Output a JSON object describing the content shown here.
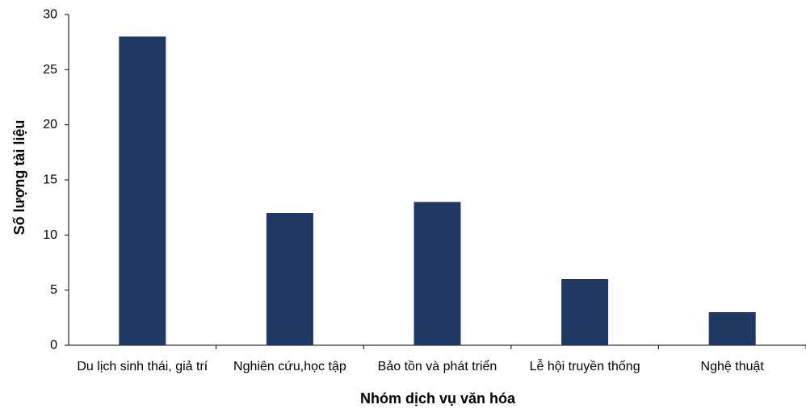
{
  "chart_data": {
    "type": "bar",
    "title": "",
    "xlabel": "Nhóm dịch vụ văn hóa",
    "ylabel": "Số lượng tài liệu",
    "categories": [
      "Du lịch sinh thái, giả trí",
      "Nghiên cứu,học tập",
      "Bảo tồn và phát triển",
      "Lễ hội truyền thống",
      "Nghệ thuật"
    ],
    "values": [
      28,
      12,
      13,
      6,
      3
    ],
    "ylim": [
      0,
      30
    ],
    "yticks": [
      0,
      5,
      10,
      15,
      20,
      25,
      30
    ],
    "grid": false,
    "legend": "none",
    "bar_color": "#203864"
  }
}
